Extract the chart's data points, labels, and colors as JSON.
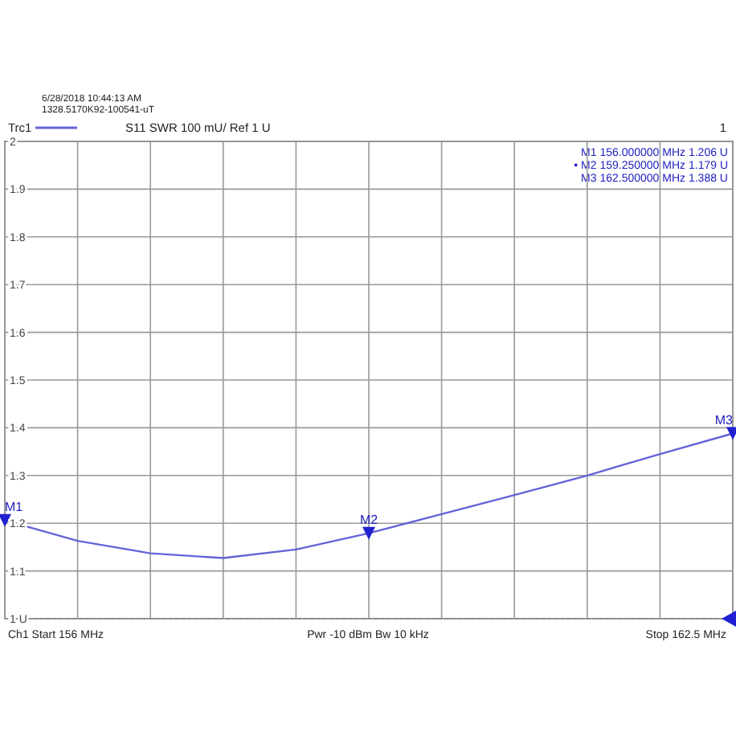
{
  "chart_data": {
    "type": "line",
    "categories": [
      null,
      null,
      null,
      null,
      null,
      null,
      null,
      null,
      null,
      null,
      null
    ],
    "series": [
      {
        "name": "Trc1",
        "color": "#6464d8",
        "values": [
          1.206,
          1.163,
          1.137,
          1.127,
          1.145,
          1.179,
          1.219,
          1.259,
          1.3,
          1.345,
          1.388
        ]
      },
      {
        "type": "scatter",
        "marker": "triangle",
        "color": "#2020d0",
        "values": [
          1.206,
          null,
          null,
          null,
          null,
          1.179,
          null,
          null,
          null,
          null,
          1.388
        ]
      }
    ],
    "ylim": [
      1,
      2
    ],
    "yticks": [
      {
        "value": 1,
        "label": "1 U"
      },
      1.1,
      1.2,
      1.3,
      1.4,
      1.5,
      1.6,
      1.7,
      1.8,
      1.9,
      2
    ],
    "grid": true,
    "legend": "top left",
    "marker": "none",
    "line_style": "solid",
    "annotations": [
      "6/28/2018 10:44:13 AM",
      "1328.5170K92-100541-uT",
      "S11  SWR  100 mU/ Ref 1 U",
      "1",
      "M1  156.000000 MHz  1.206 U",
      "• M2  159.250000 MHz  1.179 U",
      "M3  162.500000 MHz  1.388 U",
      "Ch1  Start  156 MHz",
      "Pwr  -10 dBm  Bw  10 kHz",
      "Stop  162.5 MHz",
      "M1",
      "M2",
      "M3"
    ]
  }
}
